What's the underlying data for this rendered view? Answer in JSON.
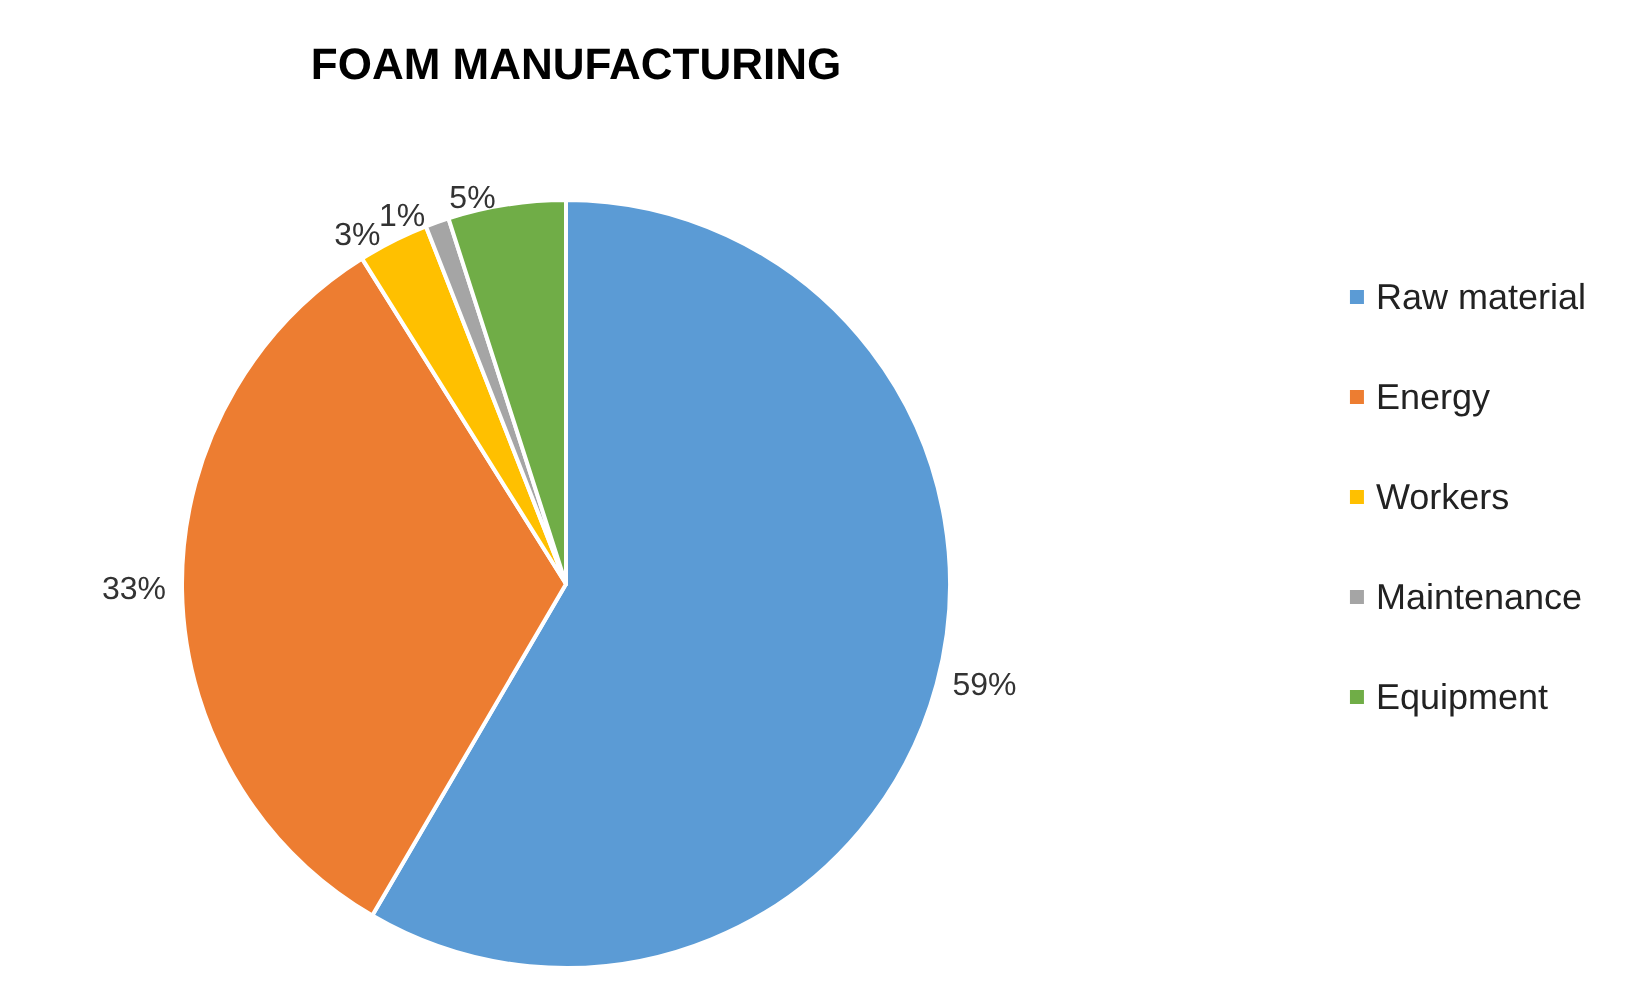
{
  "chart_data": {
    "type": "pie",
    "title": "FOAM MANUFACTURING",
    "categories": [
      "Raw material",
      "Energy",
      "Workers",
      "Maintenance",
      "Equipment"
    ],
    "values": [
      59,
      33,
      3,
      1,
      5
    ],
    "colors": [
      "#5b9bd5",
      "#ed7d31",
      "#ffc000",
      "#a5a5a5",
      "#70ad47"
    ],
    "value_labels": [
      "59%",
      "33%",
      "3%",
      "1%",
      "5%"
    ],
    "legend": "right"
  }
}
